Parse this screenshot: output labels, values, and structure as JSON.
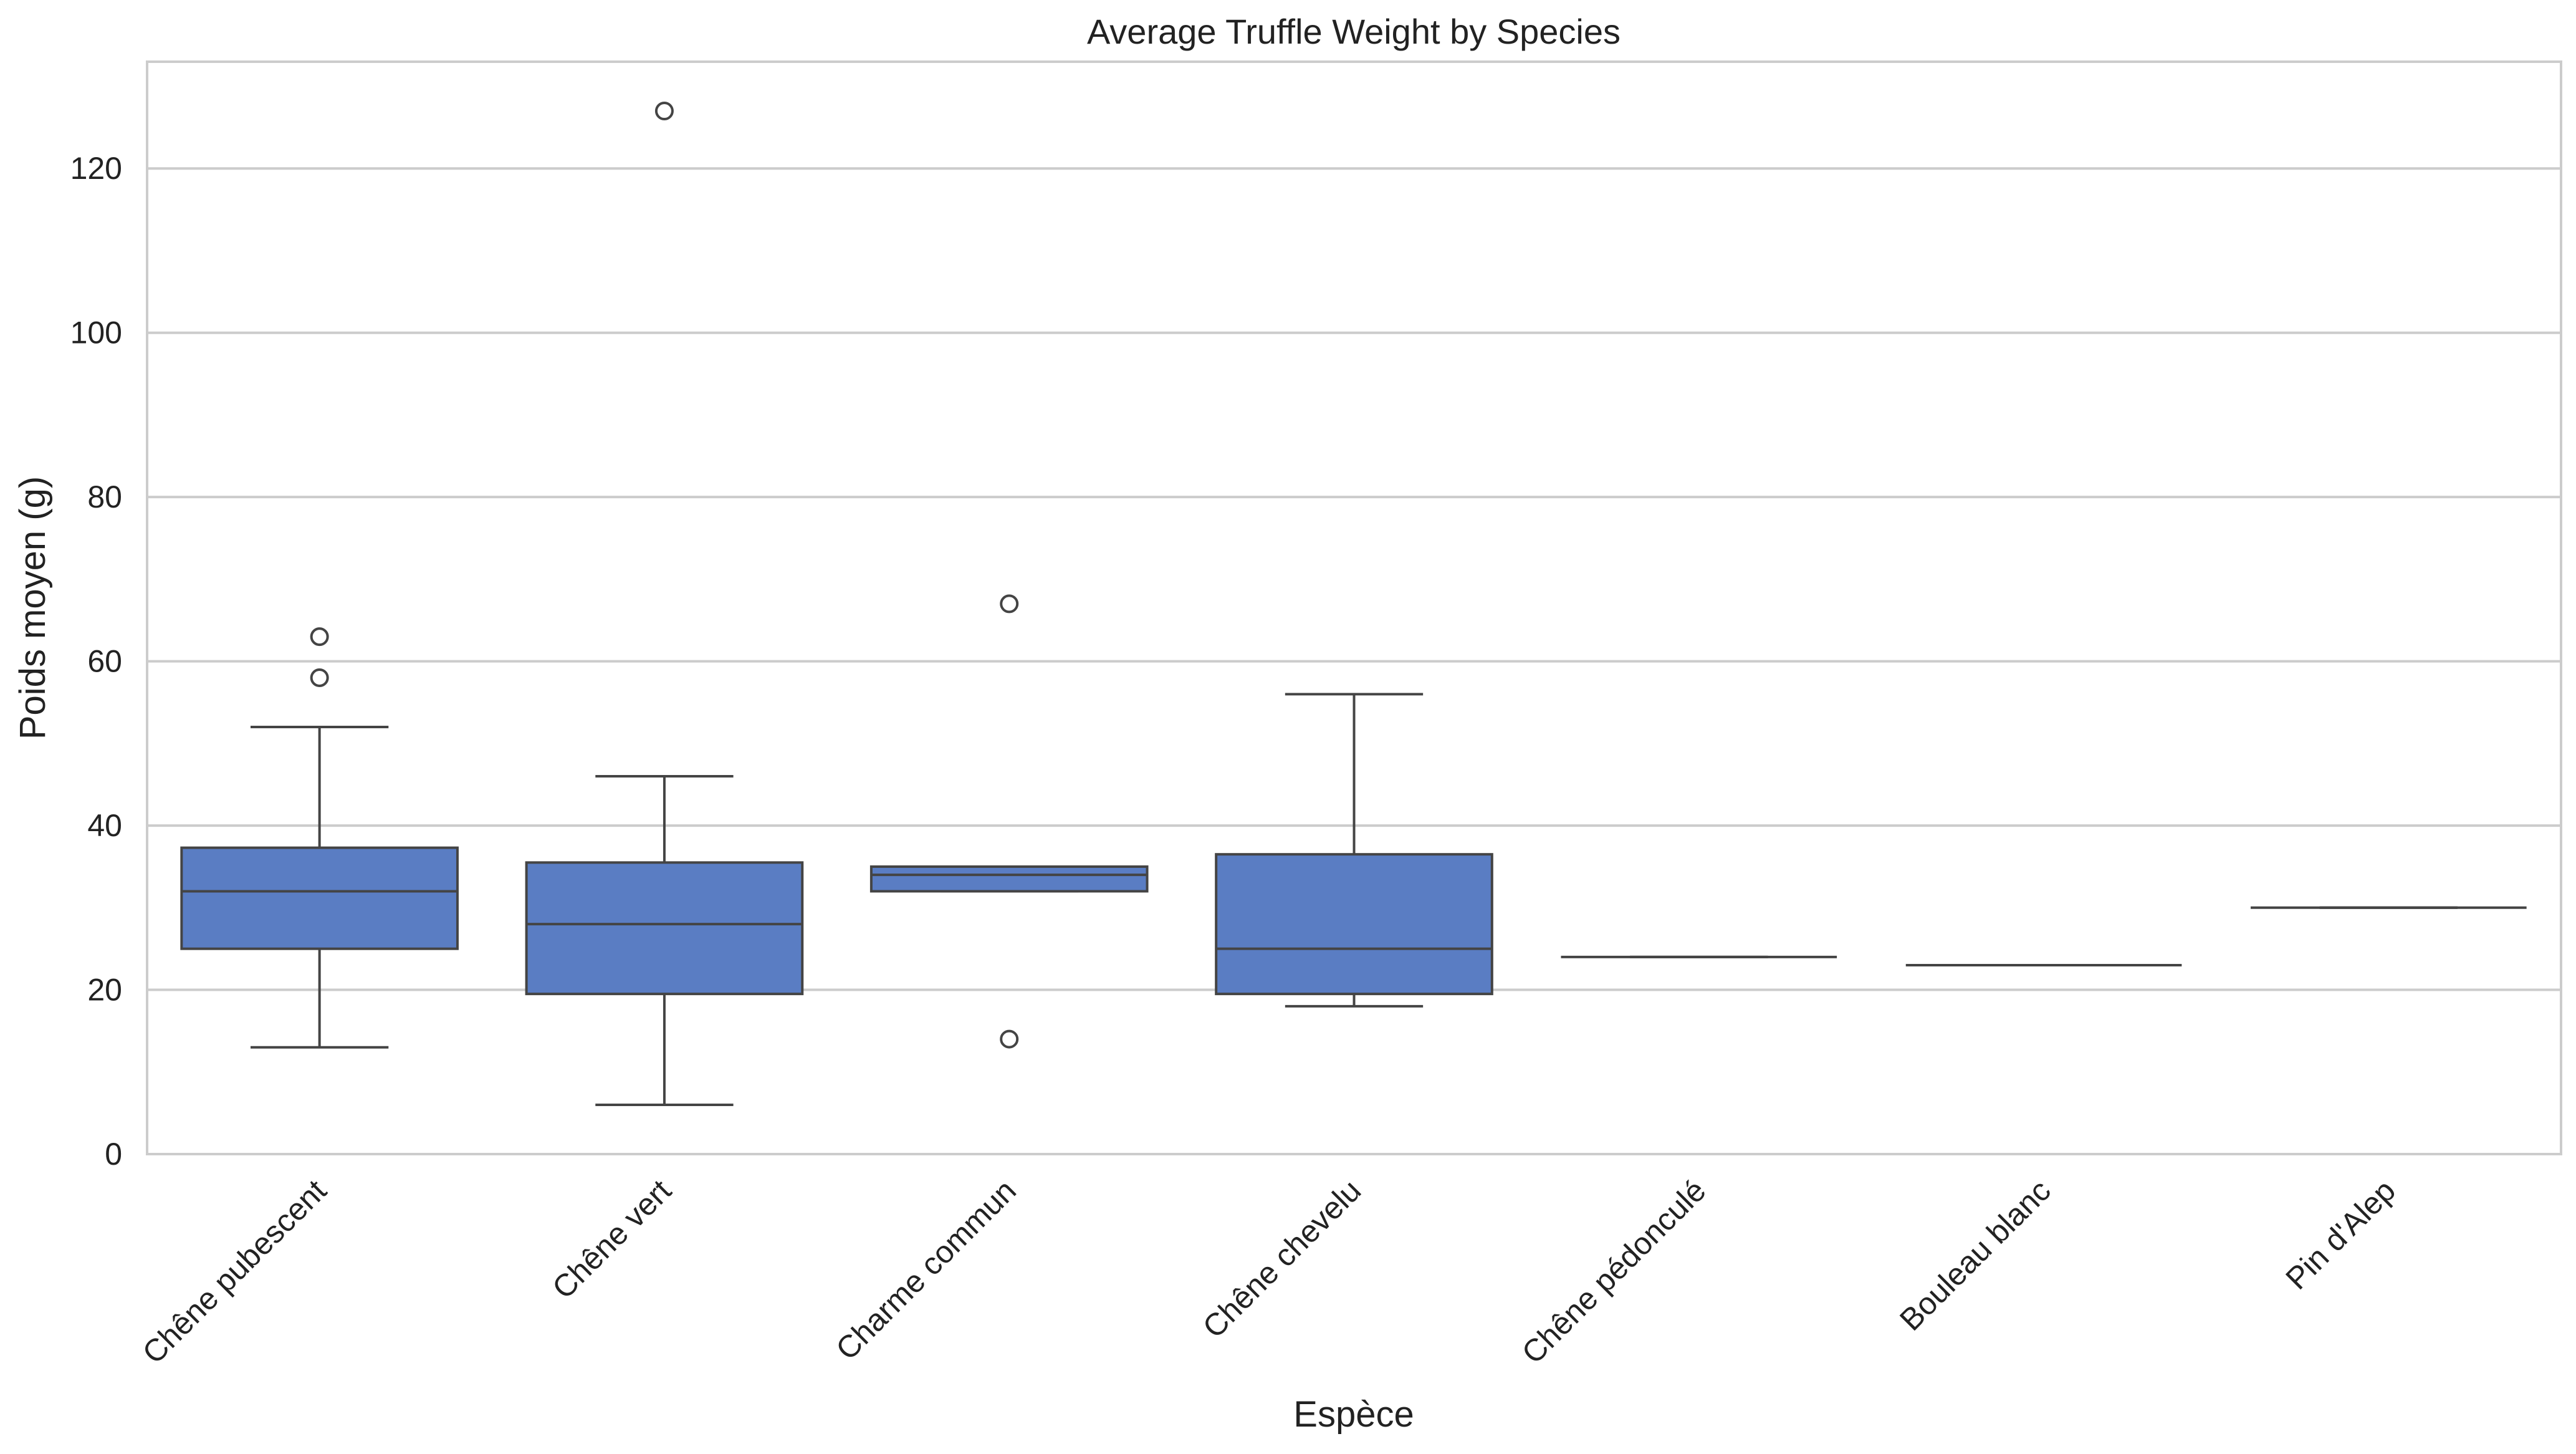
{
  "chart_data": {
    "type": "box",
    "title": "Average Truffle Weight by Species",
    "xlabel": "Espèce",
    "ylabel": "Poids moyen (g)",
    "ylim": [
      0,
      133
    ],
    "yticks": [
      0,
      20,
      40,
      60,
      80,
      100,
      120
    ],
    "grid": "horizontal",
    "box_color": "#5a7dc3",
    "line_color": "#444444",
    "categories": [
      "Chêne pubescent",
      "Chêne vert",
      "Charme commun",
      "Chêne chevelu",
      "Chêne pédonculé",
      "Bouleau blanc",
      "Pin d'Alep"
    ],
    "boxes": [
      {
        "whislo": 13,
        "q1": 25,
        "med": 32,
        "q3": 37.3,
        "whishi": 52,
        "fliers": [
          58,
          63
        ]
      },
      {
        "whislo": 6,
        "q1": 19.5,
        "med": 28,
        "q3": 35.5,
        "whishi": 46,
        "fliers": [
          127
        ]
      },
      {
        "whislo": 32,
        "q1": 32,
        "med": 34,
        "q3": 35,
        "whishi": 35,
        "fliers": [
          14,
          67
        ]
      },
      {
        "whislo": 18,
        "q1": 19.5,
        "med": 25,
        "q3": 36.5,
        "whishi": 56,
        "fliers": []
      },
      {
        "whislo": 24,
        "q1": 24,
        "med": 24,
        "q3": 24,
        "whishi": 24,
        "fliers": []
      },
      {
        "whislo": 23,
        "q1": 23,
        "med": 23,
        "q3": 23,
        "whishi": 23,
        "fliers": []
      },
      {
        "whislo": 30,
        "q1": 30,
        "med": 30,
        "q3": 30,
        "whishi": 30,
        "fliers": []
      }
    ]
  }
}
